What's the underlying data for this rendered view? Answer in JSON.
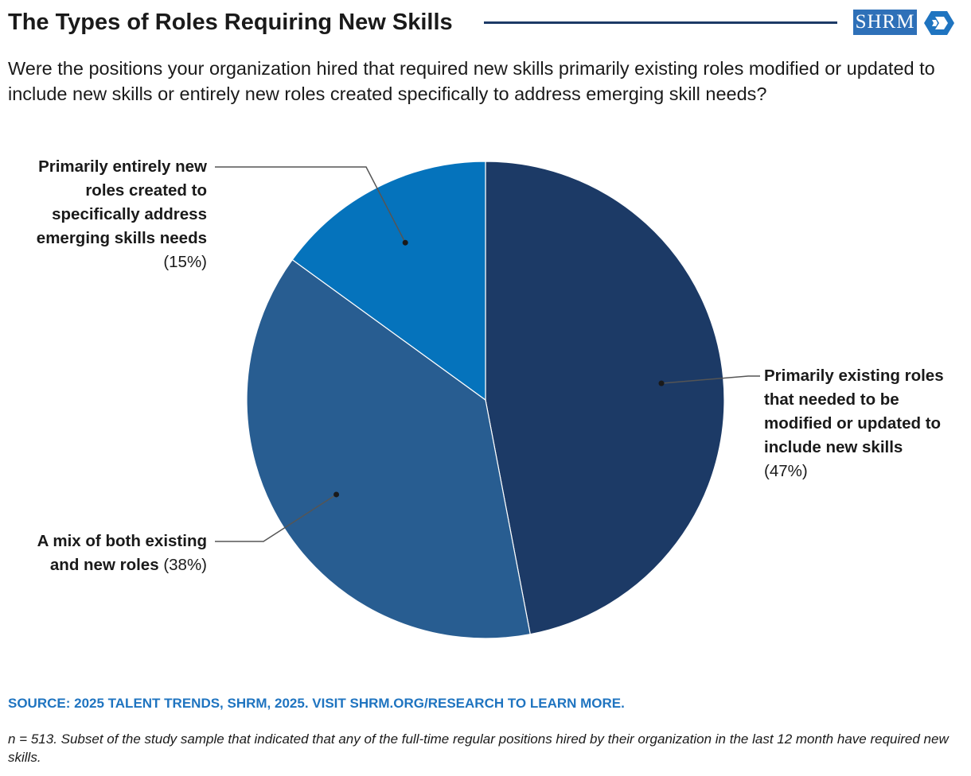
{
  "header": {
    "title": "The Types of Roles Requiring New Skills",
    "logo_text": "SHRM",
    "accent_color": "#1c3a66"
  },
  "subtitle": "Were the positions your organization hired that required new skills primarily existing roles modified or updated to include new skills or entirely new roles created specifically to address emerging skill needs?",
  "chart_data": {
    "type": "pie",
    "title": "The Types of Roles Requiring New Skills",
    "slices": [
      {
        "name": "Primarily existing roles that needed to be modified or updated to include new skills",
        "value": 47,
        "value_label": "(47%)",
        "color": "#1c3a66"
      },
      {
        "name": "A mix of both existing and new roles",
        "value": 38,
        "value_label": "(38%)",
        "color": "#285d91"
      },
      {
        "name": "Primarily entirely new roles created to specifically address emerging skills needs",
        "value": 15,
        "value_label": "(15%)",
        "color": "#0573bc"
      }
    ],
    "start": "12 o'clock",
    "direction": "clockwise"
  },
  "labels": {
    "existing": {
      "lines": [
        "Primarily existing roles",
        "that needed to be",
        "modified or updated to",
        "include new skills"
      ],
      "pct": "(47%)"
    },
    "mix": {
      "lines": [
        "A mix of both existing",
        "and new roles"
      ],
      "pct": "(38%)"
    },
    "new": {
      "lines": [
        "Primarily entirely new",
        "roles created to",
        "specifically address",
        "emerging skills needs"
      ],
      "pct": "(15%)"
    }
  },
  "footer": {
    "source": "SOURCE: 2025 TALENT TRENDS, SHRM, 2025. VISIT SHRM.ORG/RESEARCH TO LEARN MORE.",
    "note": "n = 513. Subset of the study sample that indicated that any of the full-time regular positions hired by their organization in the last 12 month have required new skills."
  }
}
